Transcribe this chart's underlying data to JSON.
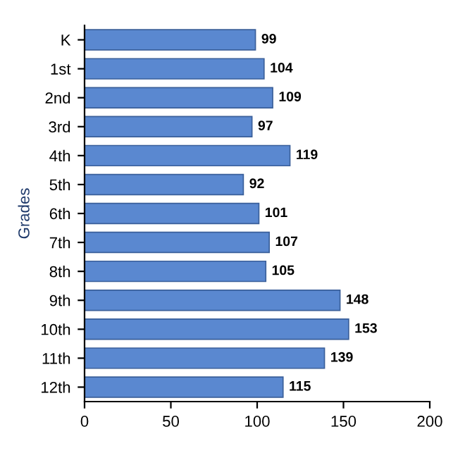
{
  "chart_data": {
    "type": "bar",
    "orientation": "horizontal",
    "ylabel": "Grades",
    "categories": [
      "K",
      "1st",
      "2nd",
      "3rd",
      "4th",
      "5th",
      "6th",
      "7th",
      "8th",
      "9th",
      "10th",
      "11th",
      "12th"
    ],
    "values": [
      99,
      104,
      109,
      97,
      119,
      92,
      101,
      107,
      105,
      148,
      153,
      139,
      115
    ],
    "color": "#5a88d0",
    "xlim": [
      0,
      200
    ],
    "xticks": [
      0,
      50,
      100,
      150,
      200
    ],
    "data_labels": true,
    "grid": false
  }
}
